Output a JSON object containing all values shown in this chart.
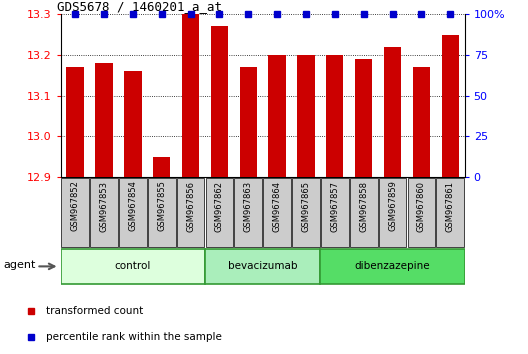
{
  "title": "GDS5678 / 1460201_a_at",
  "samples": [
    "GSM967852",
    "GSM967853",
    "GSM967854",
    "GSM967855",
    "GSM967856",
    "GSM967862",
    "GSM967863",
    "GSM967864",
    "GSM967865",
    "GSM967857",
    "GSM967858",
    "GSM967859",
    "GSM967860",
    "GSM967861"
  ],
  "transformed_count": [
    13.17,
    13.18,
    13.16,
    12.95,
    13.3,
    13.27,
    13.17,
    13.2,
    13.2,
    13.2,
    13.19,
    13.22,
    13.17,
    13.25
  ],
  "percentile_rank": [
    100,
    100,
    100,
    100,
    100,
    100,
    100,
    100,
    100,
    100,
    100,
    100,
    100,
    100
  ],
  "groups": [
    {
      "label": "control",
      "start": 0,
      "end": 5,
      "color": "#ddffdd"
    },
    {
      "label": "bevacizumab",
      "start": 5,
      "end": 9,
      "color": "#aaeebb"
    },
    {
      "label": "dibenzazepine",
      "start": 9,
      "end": 14,
      "color": "#55dd66"
    }
  ],
  "bar_color": "#cc0000",
  "percentile_color": "#0000cc",
  "ylim_left": [
    12.9,
    13.3
  ],
  "ylim_right": [
    0,
    100
  ],
  "yticks_left": [
    12.9,
    13.0,
    13.1,
    13.2,
    13.3
  ],
  "yticks_right": [
    0,
    25,
    50,
    75,
    100
  ],
  "bg_color": "#ffffff",
  "sample_box_color": "#cccccc",
  "legend_items": [
    {
      "label": "transformed count",
      "color": "#cc0000"
    },
    {
      "label": "percentile rank within the sample",
      "color": "#0000cc"
    }
  ],
  "agent_label": "agent"
}
